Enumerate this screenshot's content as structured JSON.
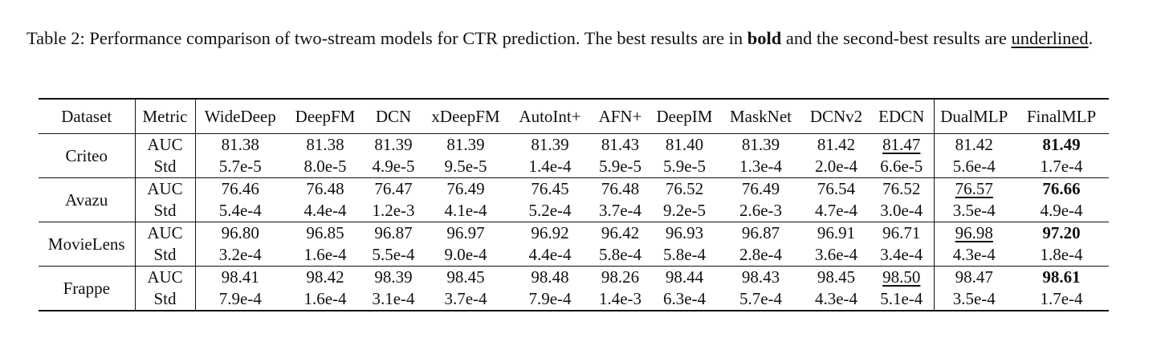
{
  "caption": {
    "parts": [
      "Table 2: Performance comparison of two-stream models for CTR prediction. The best results are in ",
      "bold",
      " and the second-best results are ",
      "underlined",
      "."
    ]
  },
  "table": {
    "header": [
      "Dataset",
      "Metric",
      "WideDeep",
      "DeepFM",
      "DCN",
      "xDeepFM",
      "AutoInt+",
      "AFN+",
      "DeepIM",
      "MaskNet",
      "DCNv2",
      "EDCN",
      "DualMLP",
      "FinalMLP"
    ],
    "groups": [
      {
        "dataset": "Criteo",
        "rows": [
          {
            "metric": "AUC",
            "values": [
              "81.38",
              "81.38",
              "81.39",
              "81.39",
              "81.39",
              "81.43",
              "81.40",
              "81.39",
              "81.42",
              "81.47",
              "81.42",
              "81.49"
            ],
            "bold": 11,
            "underline": 9
          },
          {
            "metric": "Std",
            "values": [
              "5.7e-5",
              "8.0e-5",
              "4.9e-5",
              "9.5e-5",
              "1.4e-4",
              "5.9e-5",
              "5.9e-5",
              "1.3e-4",
              "2.0e-4",
              "6.6e-5",
              "5.6e-4",
              "1.7e-4"
            ]
          }
        ]
      },
      {
        "dataset": "Avazu",
        "rows": [
          {
            "metric": "AUC",
            "values": [
              "76.46",
              "76.48",
              "76.47",
              "76.49",
              "76.45",
              "76.48",
              "76.52",
              "76.49",
              "76.54",
              "76.52",
              "76.57",
              "76.66"
            ],
            "bold": 11,
            "underline": 10
          },
          {
            "metric": "Std",
            "values": [
              "5.4e-4",
              "4.4e-4",
              "1.2e-3",
              "4.1e-4",
              "5.2e-4",
              "3.7e-4",
              "9.2e-5",
              "2.6e-3",
              "4.7e-4",
              "3.0e-4",
              "3.5e-4",
              "4.9e-4"
            ]
          }
        ]
      },
      {
        "dataset": "MovieLens",
        "rows": [
          {
            "metric": "AUC",
            "values": [
              "96.80",
              "96.85",
              "96.87",
              "96.97",
              "96.92",
              "96.42",
              "96.93",
              "96.87",
              "96.91",
              "96.71",
              "96.98",
              "97.20"
            ],
            "bold": 11,
            "underline": 10
          },
          {
            "metric": "Std",
            "values": [
              "3.2e-4",
              "1.6e-4",
              "5.5e-4",
              "9.0e-4",
              "4.4e-4",
              "5.8e-4",
              "5.8e-4",
              "2.8e-4",
              "3.6e-4",
              "3.4e-4",
              "4.3e-4",
              "1.8e-4"
            ]
          }
        ]
      },
      {
        "dataset": "Frappe",
        "rows": [
          {
            "metric": "AUC",
            "values": [
              "98.41",
              "98.42",
              "98.39",
              "98.45",
              "98.48",
              "98.26",
              "98.44",
              "98.43",
              "98.45",
              "98.50",
              "98.47",
              "98.61"
            ],
            "bold": 11,
            "underline": 9
          },
          {
            "metric": "Std",
            "values": [
              "7.9e-4",
              "1.6e-4",
              "3.1e-4",
              "3.7e-4",
              "7.9e-4",
              "1.4e-3",
              "6.3e-4",
              "5.7e-4",
              "4.3e-4",
              "5.1e-4",
              "3.5e-4",
              "1.7e-4"
            ]
          }
        ]
      }
    ]
  }
}
